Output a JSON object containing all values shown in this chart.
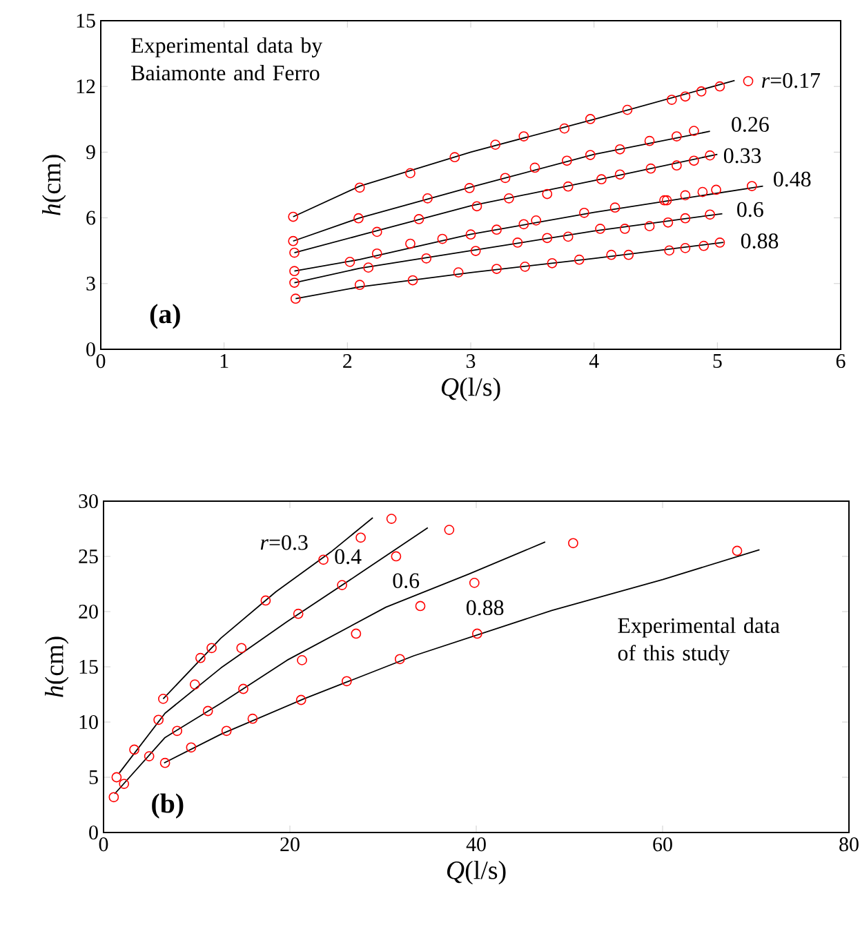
{
  "chart_data": [
    {
      "type": "scatter",
      "xlabel": "*Q*(l/s)",
      "ylabel": "*h*(cm)",
      "xlim": [
        0,
        6
      ],
      "ylim": [
        0,
        15
      ],
      "xticks": [
        0,
        1,
        2,
        3,
        4,
        5,
        6
      ],
      "yticks": [
        0,
        3,
        6,
        9,
        12,
        15
      ],
      "grid": false,
      "series": [
        {
          "color": "#ff0000",
          "marker": "circle",
          "x": [
            1.56,
            2.1,
            2.51,
            2.87,
            3.2,
            3.43,
            3.76,
            3.97,
            4.27,
            4.63,
            4.74,
            4.87,
            5.02,
            5.25
          ],
          "values": [
            6.05,
            7.38,
            8.04,
            8.77,
            9.34,
            9.72,
            10.08,
            10.51,
            10.93,
            11.39,
            11.54,
            11.77,
            12.0,
            12.24
          ]
        },
        {
          "type": "line",
          "name": "*r*=0.17",
          "color": "#000000",
          "marker": "none",
          "x": [
            1.56,
            2.1,
            3.0,
            4.0,
            5.14
          ],
          "values": [
            6.05,
            7.45,
            9.0,
            10.5,
            12.27
          ]
        },
        {
          "color": "#ff0000",
          "marker": "circle",
          "x": [
            1.56,
            2.09,
            2.65,
            2.99,
            3.28,
            3.52,
            3.78,
            3.97,
            4.21,
            4.45,
            4.67,
            4.81
          ],
          "values": [
            4.94,
            5.98,
            6.89,
            7.36,
            7.82,
            8.29,
            8.61,
            8.87,
            9.13,
            9.51,
            9.72,
            9.97
          ]
        },
        {
          "type": "line",
          "name": "0.26",
          "color": "#000000",
          "marker": "none",
          "x": [
            1.56,
            2.1,
            3.0,
            4.0,
            4.94
          ],
          "values": [
            4.94,
            6.0,
            7.4,
            8.9,
            9.95
          ]
        },
        {
          "color": "#ff0000",
          "marker": "circle",
          "x": [
            1.57,
            2.24,
            2.58,
            3.05,
            3.31,
            3.62,
            3.79,
            4.06,
            4.21,
            4.46,
            4.67,
            4.81,
            4.94
          ],
          "values": [
            4.41,
            5.36,
            5.94,
            6.53,
            6.89,
            7.09,
            7.43,
            7.76,
            7.98,
            8.25,
            8.39,
            8.61,
            8.85
          ]
        },
        {
          "type": "line",
          "name": "0.33",
          "color": "#000000",
          "marker": "none",
          "x": [
            1.57,
            2.1,
            3.0,
            4.0,
            5.0
          ],
          "values": [
            4.41,
            5.2,
            6.55,
            7.7,
            8.9
          ]
        },
        {
          "color": "#ff0000",
          "marker": "circle",
          "x": [
            1.57,
            2.02,
            2.24,
            2.51,
            2.77,
            3.0,
            3.21,
            3.43,
            3.53,
            3.92,
            4.17,
            4.57,
            4.59,
            4.74,
            4.88,
            4.99,
            5.28
          ],
          "values": [
            3.57,
            3.99,
            4.37,
            4.82,
            5.04,
            5.24,
            5.46,
            5.71,
            5.88,
            6.23,
            6.47,
            6.8,
            6.8,
            7.03,
            7.18,
            7.28,
            7.45
          ]
        },
        {
          "type": "line",
          "name": "0.48",
          "color": "#000000",
          "marker": "none",
          "x": [
            1.57,
            2.1,
            3.0,
            4.0,
            5.37
          ],
          "values": [
            3.57,
            4.1,
            5.25,
            6.25,
            7.45
          ]
        },
        {
          "color": "#ff0000",
          "marker": "circle",
          "x": [
            1.57,
            2.17,
            2.64,
            3.04,
            3.38,
            3.62,
            3.79,
            4.05,
            4.25,
            4.45,
            4.6,
            4.74,
            4.94
          ],
          "values": [
            3.04,
            3.73,
            4.15,
            4.49,
            4.87,
            5.08,
            5.14,
            5.5,
            5.5,
            5.62,
            5.79,
            5.98,
            6.15
          ]
        },
        {
          "type": "line",
          "name": "0.6",
          "color": "#000000",
          "marker": "none",
          "x": [
            1.57,
            2.1,
            3.0,
            4.0,
            5.04
          ],
          "values": [
            3.04,
            3.7,
            4.5,
            5.4,
            6.19
          ]
        },
        {
          "color": "#ff0000",
          "marker": "circle",
          "x": [
            1.58,
            2.1,
            2.53,
            2.9,
            3.21,
            3.44,
            3.66,
            3.88,
            4.14,
            4.28,
            4.61,
            4.74,
            4.89,
            5.02
          ],
          "values": [
            2.31,
            2.94,
            3.15,
            3.51,
            3.67,
            3.77,
            3.93,
            4.09,
            4.31,
            4.31,
            4.51,
            4.62,
            4.72,
            4.87
          ]
        },
        {
          "type": "line",
          "name": "0.88",
          "color": "#000000",
          "marker": "none",
          "x": [
            1.58,
            2.1,
            3.0,
            4.0,
            5.05
          ],
          "values": [
            2.31,
            2.85,
            3.5,
            4.15,
            4.88
          ]
        }
      ],
      "annotations": [
        "Experimental data by Baiamonte and Ferro",
        "**(a)**"
      ]
    },
    {
      "type": "scatter",
      "xlabel": "*Q*(l/s)",
      "ylabel": "*h*(cm)",
      "xlim": [
        0,
        80
      ],
      "ylim": [
        0,
        30
      ],
      "xticks": [
        0,
        20,
        40,
        60,
        80
      ],
      "yticks": [
        0,
        5,
        10,
        15,
        20,
        25,
        30
      ],
      "grid": false,
      "series": [
        {
          "color": "#ff0000",
          "marker": "circle",
          "x": [
            6.4,
            10.4,
            11.6,
            17.4,
            23.6,
            27.6,
            30.9
          ],
          "values": [
            12.1,
            15.8,
            16.7,
            21.0,
            24.7,
            26.7,
            28.4
          ]
        },
        {
          "type": "line",
          "name": "*r*=0.3",
          "color": "#000000",
          "marker": "none",
          "x": [
            6.4,
            12.6,
            18.5,
            24.4,
            28.9
          ],
          "values": [
            12.1,
            17.6,
            21.8,
            25.4,
            28.5
          ]
        },
        {
          "color": "#ff0000",
          "marker": "circle",
          "x": [
            1.4,
            3.3,
            5.9,
            9.8,
            14.8,
            20.9,
            25.6,
            31.4,
            37.1
          ],
          "values": [
            5.0,
            7.5,
            10.2,
            13.4,
            16.7,
            19.8,
            22.4,
            25.0,
            27.4
          ]
        },
        {
          "type": "line",
          "name": "0.4",
          "color": "#000000",
          "marker": "none",
          "x": [
            1.7,
            6.6,
            12.6,
            19.7,
            27.4,
            34.8
          ],
          "values": [
            5.4,
            10.8,
            14.9,
            19.1,
            23.4,
            27.6
          ]
        },
        {
          "color": "#ff0000",
          "marker": "circle",
          "x": [
            1.1,
            2.2,
            4.9,
            7.9,
            11.2,
            15.0,
            21.3,
            27.1,
            34.0,
            39.8,
            50.4
          ],
          "values": [
            3.2,
            4.4,
            6.9,
            9.2,
            11.0,
            13.0,
            15.6,
            18.0,
            20.5,
            22.6,
            26.2
          ]
        },
        {
          "type": "line",
          "name": "0.6",
          "color": "#000000",
          "marker": "none",
          "x": [
            1.2,
            6.6,
            12.6,
            19.7,
            30.3,
            39.2,
            47.4
          ],
          "values": [
            3.5,
            8.6,
            11.7,
            15.6,
            20.4,
            23.4,
            26.3
          ]
        },
        {
          "color": "#ff0000",
          "marker": "circle",
          "x": [
            6.6,
            9.4,
            13.2,
            16.0,
            21.2,
            26.1,
            31.8,
            40.1,
            68.0
          ],
          "values": [
            6.3,
            7.7,
            9.2,
            10.3,
            12.0,
            13.7,
            15.7,
            18.0,
            25.5
          ]
        },
        {
          "type": "line",
          "name": "0.88",
          "color": "#000000",
          "marker": "none",
          "x": [
            6.5,
            12.6,
            21.5,
            33.3,
            48.1,
            60.0,
            70.4
          ],
          "values": [
            6.3,
            8.9,
            12.1,
            16.0,
            20.1,
            22.9,
            25.6
          ]
        }
      ],
      "annotations": [
        "Experimental data of this study",
        "**(b)**"
      ]
    }
  ]
}
